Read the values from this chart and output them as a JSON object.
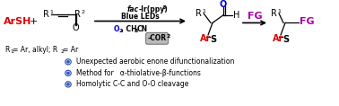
{
  "bg_color": "#ffffff",
  "arsh_color": "#dd0000",
  "ar_color": "#dd0000",
  "fg_color": "#aa00aa",
  "o_color": "#0000cc",
  "bullet_color": "#3355bb",
  "bullet1": "Unexpected aerobic enone difunctionalization",
  "bullet2": "Method for   α-thiolative-β-functions",
  "bullet3": "Homolytic C-C and O-O cleavage"
}
